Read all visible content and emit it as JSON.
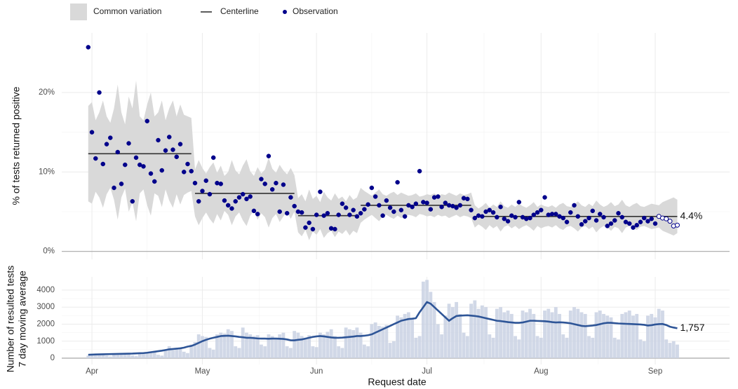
{
  "chart_data": [
    {
      "type": "control",
      "ylabel": "% of tests returned positive",
      "ylim": [
        -1,
        27.5
      ],
      "yticks": [
        {
          "value": 0,
          "label": "0%"
        },
        {
          "value": 10,
          "label": "10%"
        },
        {
          "value": 20,
          "label": "20%"
        }
      ],
      "grid": true,
      "legend": "top-left",
      "x": [
        -1,
        0,
        1,
        2,
        3,
        4,
        5,
        6,
        7,
        8,
        9,
        10,
        11,
        12,
        13,
        14,
        15,
        16,
        17,
        18,
        19,
        20,
        21,
        22,
        23,
        24,
        25,
        26,
        27,
        28,
        29,
        30,
        31,
        32,
        33,
        34,
        35,
        36,
        37,
        38,
        39,
        40,
        41,
        42,
        43,
        44,
        45,
        46,
        47,
        48,
        49,
        50,
        51,
        52,
        53,
        54,
        55,
        56,
        57,
        58,
        59,
        60,
        61,
        62,
        63,
        64,
        65,
        66,
        67,
        68,
        69,
        70,
        71,
        72,
        73,
        74,
        75,
        76,
        77,
        78,
        79,
        80,
        81,
        82,
        83,
        84,
        85,
        86,
        87,
        88,
        89,
        90,
        91,
        92,
        93,
        94,
        95,
        96,
        97,
        98,
        99,
        100,
        101,
        102,
        103,
        104,
        105,
        106,
        107,
        108,
        109,
        110,
        111,
        112,
        113,
        114,
        115,
        116,
        117,
        118,
        119,
        120,
        121,
        122,
        123,
        124,
        125,
        126,
        127,
        128,
        129,
        130,
        131,
        132,
        133,
        134,
        135,
        136,
        137,
        138,
        139,
        140,
        141,
        142,
        143,
        144,
        145,
        146,
        147,
        148,
        149,
        150,
        151,
        152,
        153,
        154,
        155,
        156,
        157,
        158,
        159
      ],
      "band": {
        "name": "Common variation",
        "color": "#d9d9d9",
        "upper": [
          18.3,
          18.8,
          16.5,
          17.5,
          19,
          17,
          16.2,
          18,
          21,
          17.5,
          16,
          19.5,
          18,
          21.5,
          17,
          16.5,
          18.5,
          20,
          17,
          17.5,
          19,
          16.5,
          18,
          19,
          17,
          18.5,
          17.2,
          17,
          16.8,
          10.3,
          11.5,
          10.5,
          9.8,
          10.6,
          11.2,
          9.9,
          10.8,
          9.5,
          10,
          11.5,
          10.2,
          9.7,
          10.8,
          11.6,
          10.1,
          9.5,
          10.6,
          9.8,
          10.3,
          11.8,
          10.4,
          9.9,
          10.9,
          10.2,
          9.7,
          10.5,
          9.6,
          6.7,
          7.2,
          6.3,
          7.8,
          6.6,
          7.0,
          6.2,
          7.5,
          6.8,
          6.4,
          7.3,
          6.6,
          6.9,
          6.3,
          7.1,
          6.5,
          6.8,
          8.0,
          7.6,
          7.3,
          7.0,
          7.4,
          7.8,
          7.2,
          7.0,
          7.3,
          7.5,
          7.1,
          7.4,
          7.2,
          7.0,
          7.1,
          7.3,
          6.9,
          7.0,
          7.2,
          7.1,
          7.3,
          7.0,
          7.2,
          7.1,
          7.4,
          7.2,
          7.0,
          7.3,
          7.1,
          7.2,
          7.4,
          5.8,
          5.4,
          5.7,
          6.1,
          5.5,
          5.9,
          5.6,
          6.3,
          5.7,
          5.5,
          5.9,
          5.6,
          6.0,
          5.7,
          5.5,
          5.8,
          6.2,
          5.6,
          5.9,
          5.7,
          5.6,
          5.8,
          5.5,
          5.9,
          6.1,
          5.7,
          5.6,
          5.9,
          6.3,
          5.8,
          5.6,
          6.0,
          5.7,
          6.4,
          5.9,
          5.6,
          5.8,
          6.2,
          5.7,
          5.9,
          6.5,
          5.8,
          5.6,
          5.9,
          6.1,
          5.7,
          5.6,
          5.8,
          6.0,
          5.9,
          5.8,
          6.2,
          6.4,
          6.6,
          6.8,
          6.5
        ],
        "lower": [
          6.3,
          6.0,
          7.5,
          6.8,
          5.5,
          7.2,
          8,
          6.5,
          4,
          6.8,
          7.9,
          5,
          6.2,
          3.8,
          7.3,
          7.8,
          5.8,
          4.5,
          7.3,
          7,
          5.6,
          7.8,
          6.4,
          5.5,
          7.2,
          5.9,
          7.1,
          7.4,
          7.6,
          4.4,
          3.3,
          4.2,
          4.9,
          4.1,
          3.5,
          4.7,
          3.9,
          5.1,
          4.6,
          3.3,
          4.4,
          4.9,
          3.9,
          3.2,
          4.5,
          5.1,
          4.0,
          4.8,
          4.3,
          3.0,
          4.2,
          4.7,
          3.7,
          4.4,
          5.0,
          4.1,
          5.0,
          2.4,
          1.9,
          2.7,
          1.4,
          2.5,
          2.1,
          2.8,
          1.7,
          2.3,
          2.6,
          1.8,
          2.5,
          2.2,
          2.7,
          2.0,
          2.6,
          2.3,
          3.6,
          4.0,
          4.3,
          4.6,
          4.2,
          3.8,
          4.4,
          4.6,
          4.3,
          4.1,
          4.5,
          4.2,
          4.4,
          4.6,
          4.5,
          4.3,
          4.7,
          4.6,
          4.4,
          4.5,
          4.3,
          4.6,
          4.4,
          4.5,
          4.2,
          4.4,
          4.6,
          4.3,
          4.5,
          4.4,
          4.2,
          3.0,
          3.4,
          3.1,
          2.7,
          3.3,
          2.9,
          3.2,
          2.5,
          3.1,
          3.3,
          2.9,
          3.2,
          2.8,
          3.1,
          3.3,
          3.0,
          2.6,
          3.2,
          2.9,
          3.1,
          3.2,
          3.0,
          3.3,
          2.9,
          2.7,
          3.1,
          3.2,
          2.9,
          2.5,
          3.0,
          3.2,
          2.8,
          3.1,
          2.4,
          2.9,
          3.2,
          3.0,
          2.6,
          3.1,
          2.9,
          2.3,
          3.0,
          3.2,
          2.9,
          2.7,
          3.1,
          3.2,
          3.0,
          2.8,
          2.9,
          3.0,
          2.6,
          2.4,
          2.2,
          2.0,
          2.3
        ]
      },
      "centerline": {
        "name": "Centerline",
        "color": "#333333",
        "segments": [
          {
            "x": [
              -1,
              27
            ],
            "value": 12.3
          },
          {
            "x": [
              28,
              55
            ],
            "value": 7.3
          },
          {
            "x": [
              56,
              72
            ],
            "value": 4.5
          },
          {
            "x": [
              73,
              103
            ],
            "value": 5.8
          },
          {
            "x": [
              104,
              159
            ],
            "value": 4.4,
            "label": "4.4%"
          }
        ]
      },
      "observations": {
        "name": "Observation",
        "color": "#00008b",
        "open_from_x": 154,
        "values": [
          25.7,
          15,
          11.7,
          20,
          11,
          13.5,
          14.3,
          8,
          12.5,
          8.5,
          10.9,
          13.6,
          6.3,
          11.8,
          10.9,
          10.7,
          16.4,
          9.8,
          8.8,
          14,
          10.2,
          12.7,
          14.4,
          12.8,
          11.9,
          13.5,
          10,
          11,
          10.1,
          8.6,
          6.3,
          7.6,
          8.9,
          7.2,
          11.8,
          8.6,
          8.5,
          6.4,
          5.8,
          5.4,
          6.3,
          6.8,
          7.2,
          6.6,
          6.9,
          5.1,
          4.7,
          9.1,
          8.5,
          12,
          7.8,
          8.6,
          5,
          8.4,
          4.8,
          6.8,
          5.7,
          5,
          4.9,
          3,
          3.6,
          2.8,
          4.6,
          7.5,
          4.5,
          4.8,
          2.9,
          2.8,
          4.6,
          6,
          5.5,
          4.6,
          5.2,
          4.4,
          4.8,
          5.3,
          5.9,
          8,
          6.9,
          5.8,
          4.5,
          6.4,
          5.5,
          5,
          8.7,
          5.2,
          4.4,
          5.8,
          5.6,
          6,
          10.1,
          6.2,
          6.1,
          5.3,
          6.8,
          6.9,
          5.6,
          6.1,
          5.8,
          5.7,
          5.5,
          5.8,
          6.7,
          6.6,
          5.2,
          4.2,
          4.5,
          4.4,
          5,
          5.2,
          4.9,
          4.3,
          5.6,
          4.1,
          3.8,
          4.5,
          4.3,
          6.2,
          4.3,
          4.1,
          4.2,
          4.6,
          4.9,
          5.2,
          6.8,
          4.6,
          4.7,
          4.7,
          4.4,
          4.2,
          3.7,
          4.9,
          5.8,
          4.4,
          3.4,
          3.8,
          4.2,
          5.1,
          3.9,
          4.7,
          4.3,
          3.2,
          3.5,
          3.9,
          4.8,
          4.3,
          3.7,
          3.5,
          3,
          3.3,
          3.7,
          4.2,
          3.8,
          4.1,
          3.5,
          4.4,
          4.2,
          4.1,
          3.8,
          3.2,
          3.3
        ]
      }
    },
    {
      "type": "bar-line",
      "ylabel": [
        "Number of resulted tests",
        "7 day moving average"
      ],
      "xlabel": "Request date",
      "xlim": [
        -8.2,
        173.2
      ],
      "xticks": [
        {
          "value": 0,
          "label": "Apr"
        },
        {
          "value": 30,
          "label": "May"
        },
        {
          "value": 61,
          "label": "Jun"
        },
        {
          "value": 91,
          "label": "Jul"
        },
        {
          "value": 122,
          "label": "Aug"
        },
        {
          "value": 153,
          "label": "Sep"
        }
      ],
      "ylim": [
        -370,
        4780
      ],
      "yticks": [
        0,
        1000,
        2000,
        3000,
        4000
      ],
      "grid": true,
      "x": [
        -1,
        0,
        1,
        2,
        3,
        4,
        5,
        6,
        7,
        8,
        9,
        10,
        11,
        12,
        13,
        14,
        15,
        16,
        17,
        18,
        19,
        20,
        21,
        22,
        23,
        24,
        25,
        26,
        27,
        28,
        29,
        30,
        31,
        32,
        33,
        34,
        35,
        36,
        37,
        38,
        39,
        40,
        41,
        42,
        43,
        44,
        45,
        46,
        47,
        48,
        49,
        50,
        51,
        52,
        53,
        54,
        55,
        56,
        57,
        58,
        59,
        60,
        61,
        62,
        63,
        64,
        65,
        66,
        67,
        68,
        69,
        70,
        71,
        72,
        73,
        74,
        75,
        76,
        77,
        78,
        79,
        80,
        81,
        82,
        83,
        84,
        85,
        86,
        87,
        88,
        89,
        90,
        91,
        92,
        93,
        94,
        95,
        96,
        97,
        98,
        99,
        100,
        101,
        102,
        103,
        104,
        105,
        106,
        107,
        108,
        109,
        110,
        111,
        112,
        113,
        114,
        115,
        116,
        117,
        118,
        119,
        120,
        121,
        122,
        123,
        124,
        125,
        126,
        127,
        128,
        129,
        130,
        131,
        132,
        133,
        134,
        135,
        136,
        137,
        138,
        139,
        140,
        141,
        142,
        143,
        144,
        145,
        146,
        147,
        148,
        149,
        150,
        151,
        152,
        153,
        154,
        155,
        156,
        157,
        158,
        159
      ],
      "bars": {
        "color": "#c9d1e3",
        "values": [
          150,
          200,
          180,
          250,
          220,
          150,
          100,
          260,
          280,
          300,
          270,
          240,
          160,
          120,
          300,
          350,
          330,
          380,
          340,
          200,
          150,
          450,
          700,
          480,
          560,
          600,
          380,
          300,
          800,
          950,
          1400,
          1300,
          1250,
          600,
          500,
          1400,
          1500,
          1450,
          1700,
          1600,
          700,
          600,
          1800,
          1500,
          1400,
          1300,
          1350,
          800,
          700,
          1400,
          1300,
          1200,
          1400,
          1500,
          700,
          600,
          1600,
          1500,
          1300,
          1200,
          1350,
          700,
          650,
          1500,
          1400,
          1550,
          1700,
          1300,
          700,
          600,
          1800,
          1700,
          1650,
          1800,
          1500,
          800,
          700,
          2000,
          2100,
          1900,
          1850,
          1950,
          900,
          1000,
          2500,
          2400,
          2600,
          2700,
          2300,
          1200,
          1300,
          4500,
          4600,
          3900,
          3300,
          2000,
          1400,
          2500,
          3200,
          3000,
          3300,
          2600,
          1500,
          1300,
          3200,
          3400,
          2900,
          3100,
          3000,
          1400,
          1200,
          2900,
          3000,
          2700,
          2800,
          2600,
          1300,
          1100,
          2800,
          2700,
          2900,
          2600,
          1300,
          1200,
          2800,
          2900,
          2700,
          3000,
          2600,
          1400,
          1200,
          2800,
          3000,
          2900,
          2700,
          2600,
          1300,
          1200,
          2700,
          2800,
          2600,
          2500,
          2400,
          1200,
          1100,
          2600,
          2700,
          2800,
          2500,
          2600,
          1100,
          1000,
          2500,
          2600,
          2400,
          2900,
          2800,
          1100,
          900,
          1000,
          800
        ]
      },
      "line": {
        "color": "#2e5597",
        "end_label": "1,757",
        "values": [
          200,
          210,
          220,
          225,
          230,
          235,
          240,
          245,
          250,
          255,
          260,
          265,
          270,
          280,
          290,
          300,
          320,
          350,
          380,
          410,
          440,
          480,
          520,
          540,
          560,
          580,
          620,
          680,
          720,
          800,
          900,
          1000,
          1080,
          1150,
          1200,
          1250,
          1300,
          1310,
          1320,
          1300,
          1280,
          1250,
          1230,
          1200,
          1200,
          1180,
          1160,
          1150,
          1150,
          1140,
          1150,
          1150,
          1140,
          1130,
          1100,
          1050,
          1050,
          1080,
          1100,
          1150,
          1200,
          1250,
          1280,
          1300,
          1280,
          1250,
          1220,
          1200,
          1200,
          1210,
          1230,
          1250,
          1270,
          1300,
          1300,
          1320,
          1350,
          1400,
          1500,
          1600,
          1700,
          1800,
          1900,
          2000,
          2100,
          2200,
          2250,
          2300,
          2320,
          2350,
          2700,
          3000,
          3300,
          3200,
          3000,
          2800,
          2600,
          2400,
          2200,
          2350,
          2480,
          2500,
          2510,
          2520,
          2500,
          2480,
          2450,
          2400,
          2350,
          2300,
          2250,
          2200,
          2180,
          2150,
          2120,
          2100,
          2080,
          2080,
          2100,
          2150,
          2200,
          2200,
          2190,
          2180,
          2170,
          2150,
          2120,
          2100,
          2110,
          2100,
          2080,
          2050,
          2000,
          1950,
          1900,
          1880,
          1900,
          1920,
          1950,
          2000,
          2050,
          2080,
          2080,
          2060,
          2040,
          2030,
          2020,
          2010,
          2000,
          1990,
          1980,
          1960,
          1920,
          1940,
          1980,
          2000,
          2010,
          1950,
          1850,
          1800,
          1757
        ]
      }
    }
  ]
}
